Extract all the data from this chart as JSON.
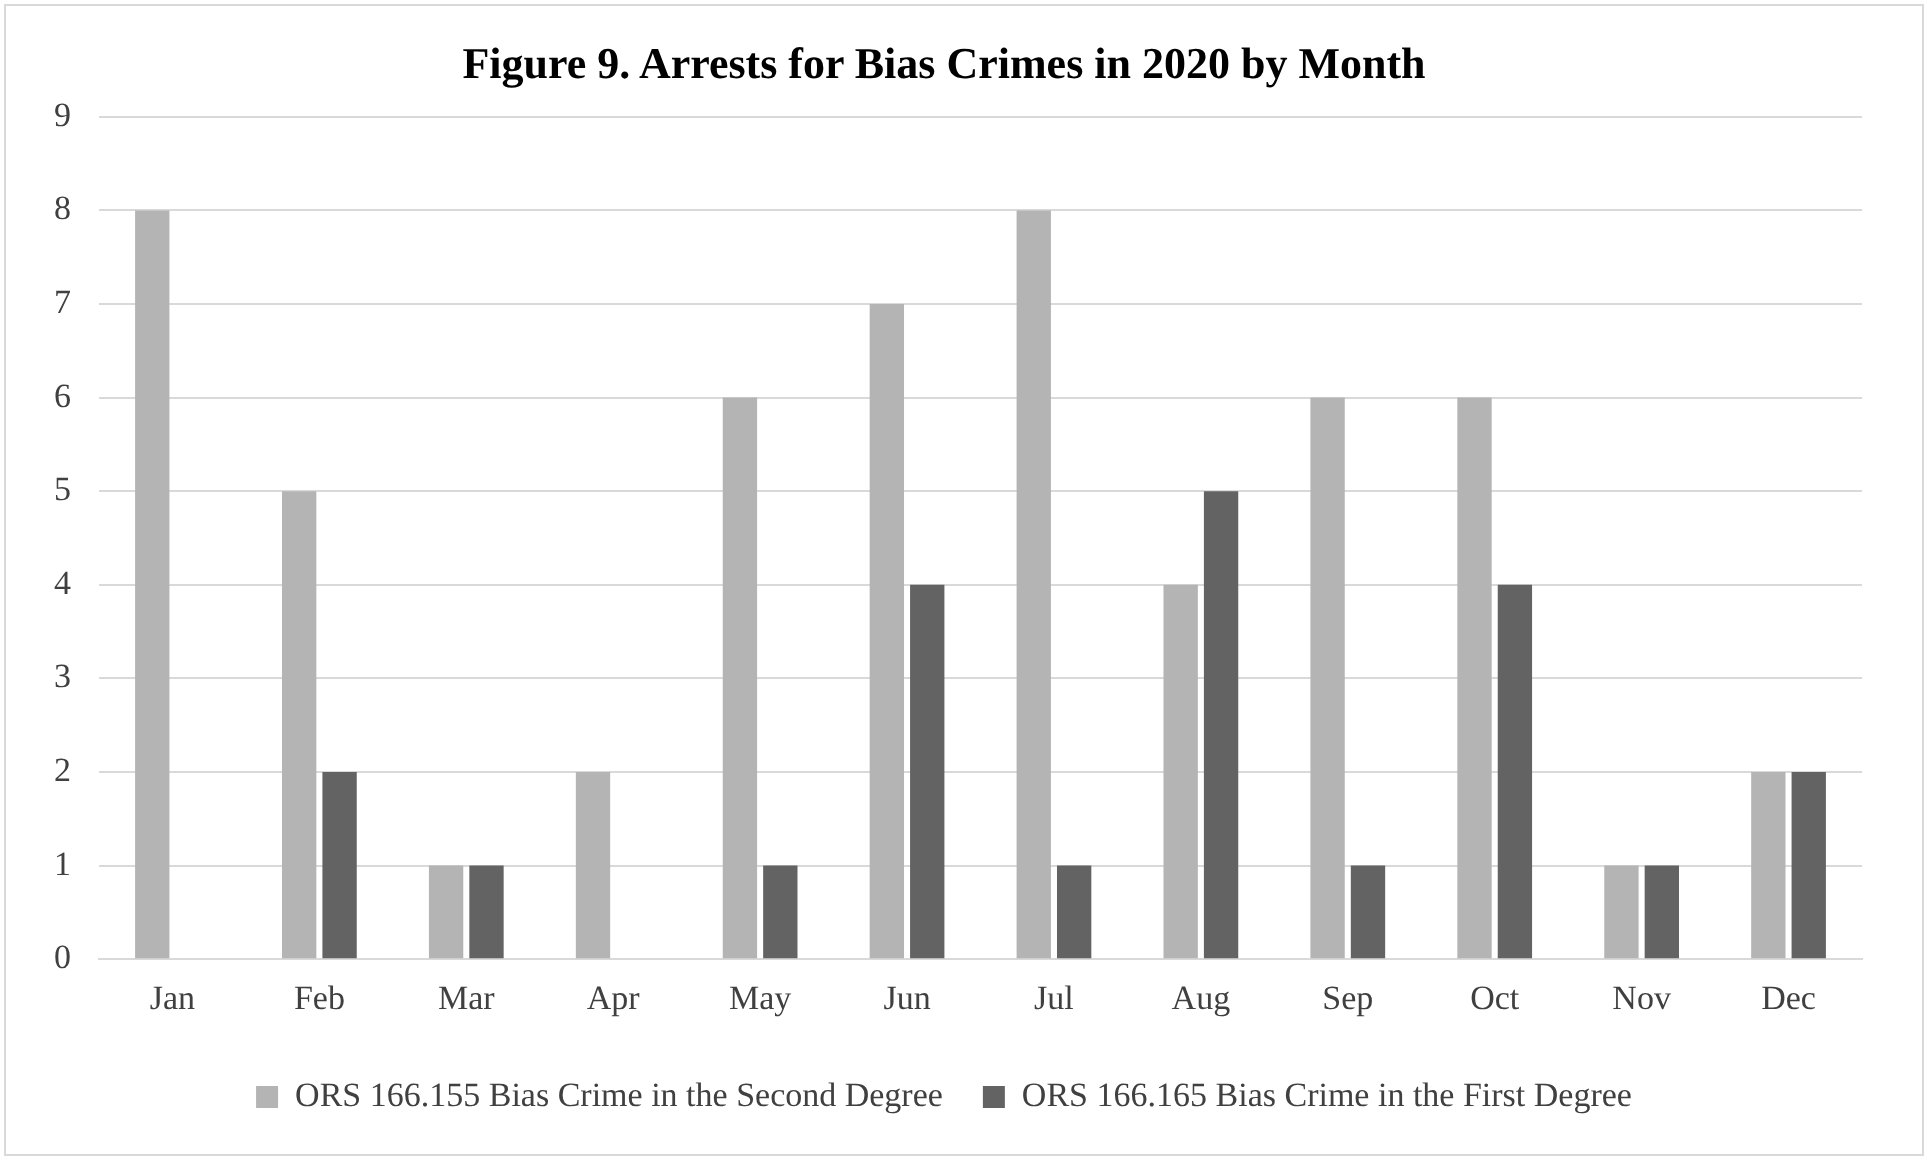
{
  "chart_data": {
    "type": "bar",
    "title": "Figure 9. Arrests for Bias Crimes in 2020 by Month",
    "categories": [
      "Jan",
      "Feb",
      "Mar",
      "Apr",
      "May",
      "Jun",
      "Jul",
      "Aug",
      "Sep",
      "Oct",
      "Nov",
      "Dec"
    ],
    "series": [
      {
        "name": "ORS 166.155 Bias Crime in the Second Degree",
        "color": "#b4b4b4",
        "values": [
          8,
          5,
          1,
          2,
          6,
          7,
          8,
          4,
          6,
          6,
          1,
          2
        ]
      },
      {
        "name": "ORS 166.165 Bias Crime in the First Degree",
        "color": "#636363",
        "values": [
          0,
          2,
          1,
          0,
          1,
          4,
          1,
          5,
          1,
          4,
          1,
          2
        ]
      }
    ],
    "ylim": [
      0,
      9
    ],
    "yticks": [
      0,
      1,
      2,
      3,
      4,
      5,
      6,
      7,
      8,
      9
    ],
    "grid": "y",
    "legend": "bottom"
  }
}
